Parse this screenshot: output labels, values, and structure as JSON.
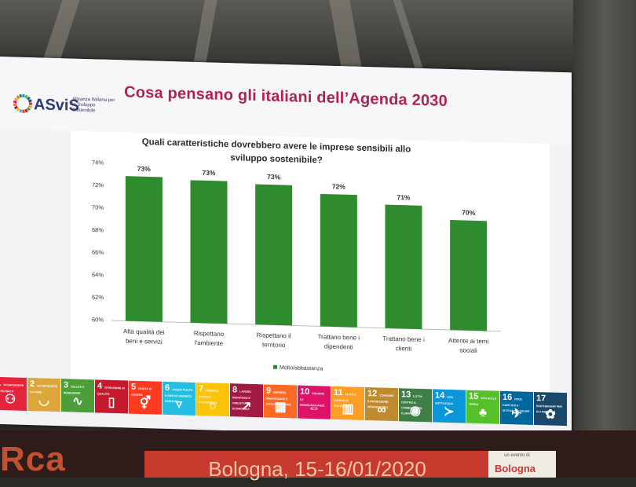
{
  "slide": {
    "title": "Cosa pensano gli italiani dell’Agenda 2030",
    "logo": {
      "word": "ASviS",
      "subtitle": "Alleanza Italiana per lo Sviluppo Sostenibile"
    }
  },
  "chart_data": {
    "type": "bar",
    "title": "Quali caratteristiche dovrebbero avere le imprese sensibili allo sviluppo sostenibile?",
    "categories": [
      "Alta qualità dei beni e servizi",
      "Rispettano l'ambiente",
      "Rispettano il territorio",
      "Trattano bene i dipendenti",
      "Trattano bene i clienti",
      "Attente ai temi sociali"
    ],
    "series": [
      {
        "name": "Molto/abbastanza",
        "values": [
          72.9,
          72.7,
          72.5,
          71.8,
          71.0,
          69.8
        ],
        "labels": [
          "73%",
          "73%",
          "73%",
          "72%",
          "71%",
          "70%"
        ]
      }
    ],
    "ylim": [
      60,
      74
    ],
    "yticks": [
      "60%",
      "62%",
      "64%",
      "66%",
      "68%",
      "70%",
      "72%",
      "74%"
    ],
    "xlabel": "",
    "ylabel": "",
    "legend": "bottom",
    "grid": false,
    "bar_color": "#2e8b2e"
  },
  "sdg_goals": [
    {
      "num": "1",
      "label": "SCONFIGGERE LA POVERTÀ",
      "color": "#e5243b",
      "icon": "family-icon"
    },
    {
      "num": "2",
      "label": "SCONFIGGERE LA FAME",
      "color": "#dda63a",
      "icon": "bowl-icon"
    },
    {
      "num": "3",
      "label": "SALUTE E BENESSERE",
      "color": "#4c9f38",
      "icon": "heartbeat-icon"
    },
    {
      "num": "4",
      "label": "ISTRUZIONE DI QUALITÀ",
      "color": "#c5192d",
      "icon": "book-icon"
    },
    {
      "num": "5",
      "label": "PARITÀ DI GENERE",
      "color": "#ff3a21",
      "icon": "gender-icon"
    },
    {
      "num": "6",
      "label": "ACQUA PULITA E SERVIZI IGIENICO-SANITARI",
      "color": "#26bde2",
      "icon": "water-icon"
    },
    {
      "num": "7",
      "label": "ENERGIA PULITA E ACCESSIBILE",
      "color": "#fcc30b",
      "icon": "sun-icon"
    },
    {
      "num": "8",
      "label": "LAVORO DIGNITOSO E CRESCITA ECONOMICA",
      "color": "#a21942",
      "icon": "growth-icon"
    },
    {
      "num": "9",
      "label": "IMPRESE, INNOVAZIONE E INFRASTRUTTURE",
      "color": "#fd6925",
      "icon": "cubes-icon"
    },
    {
      "num": "10",
      "label": "RIDURRE LE DISUGUAGLIANZE",
      "color": "#dd1367",
      "icon": "equality-icon"
    },
    {
      "num": "11",
      "label": "CITTÀ E COMUNITÀ SOSTENIBILI",
      "color": "#fd9d24",
      "icon": "city-icon"
    },
    {
      "num": "12",
      "label": "CONSUMO E PRODUZIONE RESPONSABILI",
      "color": "#bf8b2e",
      "icon": "infinity-icon"
    },
    {
      "num": "13",
      "label": "LOTTA CONTRO IL CAMBIAMENTO CLIMATICO",
      "color": "#3f7e44",
      "icon": "eye-icon"
    },
    {
      "num": "14",
      "label": "VITA SOTT'ACQUA",
      "color": "#0a97d9",
      "icon": "fish-icon"
    },
    {
      "num": "15",
      "label": "VITA SULLA TERRA",
      "color": "#56c02b",
      "icon": "tree-icon"
    },
    {
      "num": "16",
      "label": "PACE, GIUSTIZIA E ISTITUZIONI SOLIDE",
      "color": "#00689d",
      "icon": "dove-icon"
    },
    {
      "num": "17",
      "label": "PARTNERSHIP PER GLI OBIETTIVI",
      "color": "#19486a",
      "icon": "flower-icon"
    }
  ],
  "banner": {
    "brand": "Rca",
    "event": "Bologna, 15-16/01/2020",
    "sponsor_small": "un evento di",
    "sponsor": "Bologna"
  }
}
